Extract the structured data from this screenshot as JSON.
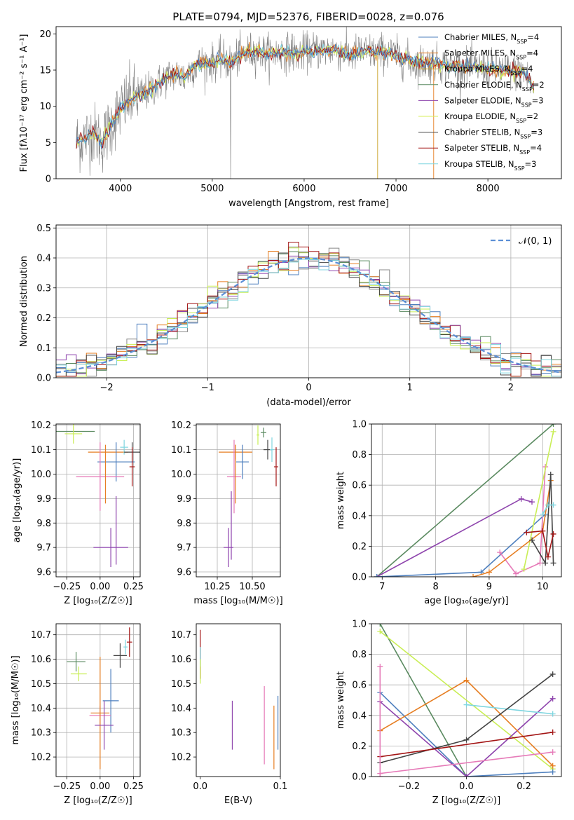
{
  "title": "PLATE=0794, MJD=52376, FIBERID=0028, z=0.076",
  "colors": {
    "cm": "#4d7fbe",
    "sm": "#e67e22",
    "km": "#888888",
    "ce": "#8e44ad",
    "se": "#de9bc7",
    "ke": "#c9ee55",
    "cs": "#2c2c2c",
    "ss": "#a31515",
    "ks": "#7fd6e0",
    "gauss": "#5b8fd6",
    "green": "#5a8a60",
    "pink": "#e67ab8"
  },
  "chart_data": [
    {
      "type": "line",
      "id": "spectrum",
      "xlabel": "wavelength [Angstrom, rest frame]",
      "ylabel": "Flux [f_λ 10^-17 erg cm^-2 s^-1 A^-1]",
      "xlim": [
        3300,
        8800
      ],
      "ylim": [
        0,
        21
      ],
      "xticks": [
        4000,
        5000,
        6000,
        7000,
        8000
      ],
      "yticks": [
        0,
        5,
        10,
        15,
        20
      ],
      "legend_position": "top-right",
      "legend": [
        {
          "label": "Chabrier MILES, N",
          "sub": "SSP",
          "tail": "=4",
          "color": "#4d7fbe"
        },
        {
          "label": "Salpeter MILES, N",
          "sub": "SSP",
          "tail": "=4",
          "color": "#e67e22"
        },
        {
          "label": "Kroupa MILES, N",
          "sub": "SSP",
          "tail": "=4",
          "color": "#c9a227"
        },
        {
          "label": "Chabrier ELODIE, N",
          "sub": "SSP",
          "tail": "=2",
          "color": "#5a8a60"
        },
        {
          "label": "Salpeter ELODIE, N",
          "sub": "SSP",
          "tail": "=3",
          "color": "#8e44ad"
        },
        {
          "label": "Kroupa ELODIE, N",
          "sub": "SSP",
          "tail": "=2",
          "color": "#d7ef5a"
        },
        {
          "label": "Chabrier STELIB, N",
          "sub": "SSP",
          "tail": "=3",
          "color": "#444444"
        },
        {
          "label": "Salpeter STELIB, N",
          "sub": "SSP",
          "tail": "=4",
          "color": "#a31515"
        },
        {
          "label": "Kroupa STELIB, N",
          "sub": "SSP",
          "tail": "=3",
          "color": "#7fd6e0"
        }
      ],
      "continuum": [
        [
          3500,
          5
        ],
        [
          3600,
          5.5
        ],
        [
          3700,
          6.5
        ],
        [
          3800,
          5
        ],
        [
          3900,
          7.5
        ],
        [
          4000,
          9.5
        ],
        [
          4100,
          11
        ],
        [
          4200,
          11.5
        ],
        [
          4300,
          12
        ],
        [
          4400,
          13
        ],
        [
          4500,
          14
        ],
        [
          4600,
          14.5
        ],
        [
          4700,
          14
        ],
        [
          4800,
          15.5
        ],
        [
          4900,
          16
        ],
        [
          5000,
          16
        ],
        [
          5100,
          16.5
        ],
        [
          5200,
          16
        ],
        [
          5300,
          17
        ],
        [
          5400,
          17.5
        ],
        [
          5500,
          17.5
        ],
        [
          5600,
          17.3
        ],
        [
          5700,
          17.3
        ],
        [
          5800,
          17.5
        ],
        [
          5900,
          17.2
        ],
        [
          6000,
          17.5
        ],
        [
          6100,
          17.7
        ],
        [
          6200,
          17.8
        ],
        [
          6300,
          17.8
        ],
        [
          6400,
          17.5
        ],
        [
          6500,
          17
        ],
        [
          6600,
          17.5
        ],
        [
          6700,
          17.5
        ],
        [
          6800,
          17.5
        ],
        [
          6900,
          17.5
        ],
        [
          7000,
          17
        ],
        [
          7100,
          16.5
        ],
        [
          7200,
          16
        ],
        [
          7300,
          16
        ],
        [
          7400,
          16
        ],
        [
          7500,
          15.8
        ],
        [
          7600,
          15.5
        ],
        [
          7700,
          15.5
        ],
        [
          7800,
          15.3
        ],
        [
          7900,
          15.3
        ],
        [
          8000,
          15.2
        ],
        [
          8100,
          15
        ],
        [
          8200,
          15
        ],
        [
          8300,
          14.8
        ],
        [
          8400,
          14.5
        ],
        [
          8500,
          12.5
        ]
      ]
    },
    {
      "type": "line",
      "id": "residuals",
      "xlabel": "(data-model)/error",
      "ylabel": "Normed distribution",
      "xlim": [
        -2.5,
        2.5
      ],
      "ylim": [
        0,
        0.51
      ],
      "xticks": [
        -2,
        -1,
        0,
        1,
        2
      ],
      "yticks": [
        0.0,
        0.1,
        0.2,
        0.3,
        0.4,
        0.5
      ],
      "legend_position": "top-right",
      "legend": [
        {
          "label": "𝒩(0, 1)",
          "color": "#5b8fd6"
        }
      ]
    },
    {
      "type": "scatter",
      "id": "age_vs_Z",
      "xlabel": "Z [log10(Z/Z☉)]",
      "ylabel": "age [log10(age/yr)]",
      "xlim": [
        -0.33,
        0.3
      ],
      "ylim": [
        9.58,
        10.205
      ],
      "xticks": [
        -0.25,
        0.0,
        0.25
      ],
      "yticks": [
        9.6,
        9.7,
        9.8,
        9.9,
        10.0,
        10.1,
        10.2
      ],
      "points": [
        {
          "x": -0.2,
          "y": 10.175,
          "xerr": 0.32,
          "yerr": 0.0,
          "color": "#5a8a60"
        },
        {
          "x": -0.2,
          "y": 10.165,
          "xerr": 0.13,
          "yerr": 0.04,
          "color": "#c9ee55"
        },
        {
          "x": 0.06,
          "y": 10.09,
          "xerr": 0.3,
          "yerr": 0.0,
          "color": "#e67e22"
        },
        {
          "x": 0.18,
          "y": 10.11,
          "xerr": 0.06,
          "yerr": 0.03,
          "color": "#7fd6e0"
        },
        {
          "x": 0.24,
          "y": 10.09,
          "xerr": 0.12,
          "yerr": 0.04,
          "color": "#444444"
        },
        {
          "x": 0.12,
          "y": 10.05,
          "xerr": 0.28,
          "yerr": 0.08,
          "color": "#4d7fbe"
        },
        {
          "x": 0.24,
          "y": 10.03,
          "xerr": 0.04,
          "yerr": 0.08,
          "color": "#a31515"
        },
        {
          "x": 0.0,
          "y": 9.99,
          "xerr": 0.36,
          "yerr": 0.14,
          "color": "#e67ab8"
        },
        {
          "x": 0.04,
          "y": 10.0,
          "xerr": 0.0,
          "yerr": 0.12,
          "color": "#e67e22"
        },
        {
          "x": 0.08,
          "y": 9.7,
          "xerr": 0.26,
          "yerr": 0.08,
          "color": "#8e44ad"
        },
        {
          "x": 0.12,
          "y": 9.77,
          "xerr": 0.0,
          "yerr": 0.14,
          "color": "#8e44ad"
        }
      ]
    },
    {
      "type": "scatter",
      "id": "age_vs_mass",
      "xlabel": "mass [log10(M/M☉)]",
      "ylabel": "",
      "xlim": [
        10.1,
        10.7
      ],
      "ylim": [
        9.58,
        10.205
      ],
      "xticks": [
        10.25,
        10.5
      ],
      "ytick_labels": [
        9.6,
        9.7,
        9.8,
        9.9,
        10.0,
        10.1,
        10.2
      ],
      "points": [
        {
          "x": 10.58,
          "y": 10.17,
          "xerr": 0.04,
          "yerr": 0.02,
          "color": "#5a8a60"
        },
        {
          "x": 10.54,
          "y": 10.16,
          "xerr": 0.02,
          "yerr": 0.04,
          "color": "#c9ee55"
        },
        {
          "x": 10.61,
          "y": 10.1,
          "xerr": 0.06,
          "yerr": 0.04,
          "color": "#444444"
        },
        {
          "x": 10.64,
          "y": 10.1,
          "xerr": 0.03,
          "yerr": 0.05,
          "color": "#7fd6e0"
        },
        {
          "x": 10.67,
          "y": 10.03,
          "xerr": 0.03,
          "yerr": 0.08,
          "color": "#a31515"
        },
        {
          "x": 10.38,
          "y": 10.09,
          "xerr": 0.24,
          "yerr": 0.03,
          "color": "#e67e22"
        },
        {
          "x": 10.43,
          "y": 10.05,
          "xerr": 0.09,
          "yerr": 0.07,
          "color": "#4d7fbe"
        },
        {
          "x": 10.37,
          "y": 9.99,
          "xerr": 0.1,
          "yerr": 0.15,
          "color": "#e67ab8"
        },
        {
          "x": 10.38,
          "y": 10.0,
          "xerr": 0.0,
          "yerr": 0.12,
          "color": "#e67e22"
        },
        {
          "x": 10.33,
          "y": 9.7,
          "xerr": 0.07,
          "yerr": 0.08,
          "color": "#8e44ad"
        },
        {
          "x": 10.35,
          "y": 9.79,
          "xerr": 0.0,
          "yerr": 0.14,
          "color": "#8e44ad"
        }
      ]
    },
    {
      "type": "line",
      "id": "mw_vs_age",
      "xlabel": "age [log10(age/yr)]",
      "ylabel": "mass weight",
      "xlim": [
        6.8,
        10.35
      ],
      "ylim": [
        0,
        1.0
      ],
      "xticks": [
        7,
        8,
        9,
        10
      ],
      "yticks": [
        0.0,
        0.2,
        0.4,
        0.6,
        0.8,
        1.0
      ],
      "series": [
        {
          "color": "#5a8a60",
          "x": [
            6.9,
            10.2
          ],
          "y": [
            0.0,
            1.0
          ]
        },
        {
          "color": "#8e44ad",
          "x": [
            6.9,
            9.6,
            9.8
          ],
          "y": [
            0.0,
            0.51,
            0.49
          ]
        },
        {
          "color": "#4d7fbe",
          "x": [
            6.9,
            8.85,
            10.05
          ],
          "y": [
            0.0,
            0.03,
            0.41
          ]
        },
        {
          "color": "#e67ab8",
          "x": [
            9.2,
            9.5,
            9.95,
            10.05
          ],
          "y": [
            0.16,
            0.02,
            0.09,
            0.72
          ]
        },
        {
          "color": "#c9ee55",
          "x": [
            9.65,
            10.2
          ],
          "y": [
            0.05,
            0.95
          ]
        },
        {
          "color": "#e67e22",
          "x": [
            8.7,
            9.0,
            10.0,
            10.15
          ],
          "y": [
            0.0,
            0.03,
            0.3,
            0.63
          ]
        },
        {
          "color": "#444444",
          "x": [
            9.8,
            10.05,
            10.15,
            10.2
          ],
          "y": [
            0.24,
            0.09,
            0.67,
            0.09
          ]
        },
        {
          "color": "#a31515",
          "x": [
            9.7,
            10.0,
            10.1,
            10.2
          ],
          "y": [
            0.29,
            0.3,
            0.13,
            0.28
          ]
        },
        {
          "color": "#7fd6e0",
          "x": [
            10.0,
            10.1,
            10.2
          ],
          "y": [
            0.41,
            0.47,
            0.47
          ]
        }
      ]
    },
    {
      "type": "scatter",
      "id": "mass_vs_Z",
      "xlabel": "Z [log10(Z/Z☉)]",
      "ylabel": "mass [log10(M/M☉)]",
      "xlim": [
        -0.33,
        0.3
      ],
      "ylim": [
        10.12,
        10.745
      ],
      "xticks": [
        -0.25,
        0.0,
        0.25
      ],
      "yticks": [
        10.2,
        10.3,
        10.4,
        10.5,
        10.6,
        10.7
      ],
      "points": [
        {
          "x": -0.18,
          "y": 10.59,
          "xerr": 0.14,
          "yerr": 0.04,
          "color": "#5a8a60"
        },
        {
          "x": -0.16,
          "y": 10.54,
          "xerr": 0.12,
          "yerr": 0.03,
          "color": "#c9ee55"
        },
        {
          "x": 0.15,
          "y": 10.615,
          "xerr": 0.1,
          "yerr": 0.05,
          "color": "#444444"
        },
        {
          "x": 0.22,
          "y": 10.67,
          "xerr": 0.04,
          "yerr": 0.06,
          "color": "#a31515"
        },
        {
          "x": 0.19,
          "y": 10.65,
          "xerr": 0.03,
          "yerr": 0.03,
          "color": "#7fd6e0"
        },
        {
          "x": 0.08,
          "y": 10.43,
          "xerr": 0.12,
          "yerr": 0.13,
          "color": "#4d7fbe"
        },
        {
          "x": 0.0,
          "y": 10.37,
          "xerr": 0.16,
          "yerr": 0.04,
          "color": "#e67ab8"
        },
        {
          "x": 0.0,
          "y": 10.38,
          "xerr": 0.14,
          "yerr": 0.23,
          "color": "#e67e22"
        },
        {
          "x": 0.03,
          "y": 10.33,
          "xerr": 0.14,
          "yerr": 0.1,
          "color": "#8e44ad"
        }
      ]
    },
    {
      "type": "scatter",
      "id": "mass_vs_ebv",
      "xlabel": "E(B-V)",
      "ylabel": "",
      "xlim": [
        -0.005,
        0.1
      ],
      "ylim": [
        10.12,
        10.745
      ],
      "xticks": [
        0.0,
        0.1
      ],
      "ytick_labels": [
        10.2,
        10.3,
        10.4,
        10.5,
        10.6,
        10.7
      ],
      "points": [
        {
          "x": 0.0,
          "y": 10.62,
          "xerr": 0.0,
          "yerr": 0.1,
          "color": "#a31515"
        },
        {
          "x": 0.0,
          "y": 10.61,
          "xerr": 0.0,
          "yerr": 0.04,
          "color": "#7fd6e0"
        },
        {
          "x": 0.0,
          "y": 10.55,
          "xerr": 0.0,
          "yerr": 0.05,
          "color": "#c9ee55"
        },
        {
          "x": 0.04,
          "y": 10.33,
          "xerr": 0.0,
          "yerr": 0.1,
          "color": "#8e44ad"
        },
        {
          "x": 0.08,
          "y": 10.33,
          "xerr": 0.0,
          "yerr": 0.16,
          "color": "#e67ab8"
        },
        {
          "x": 0.092,
          "y": 10.28,
          "xerr": 0.0,
          "yerr": 0.13,
          "color": "#e67e22"
        },
        {
          "x": 0.097,
          "y": 10.34,
          "xerr": 0.0,
          "yerr": 0.11,
          "color": "#4d7fbe"
        }
      ]
    },
    {
      "type": "line",
      "id": "mw_vs_Z",
      "xlabel": "Z [log10(Z/Z☉)]",
      "ylabel": "mass weight",
      "xlim": [
        -0.33,
        0.33
      ],
      "ylim": [
        0,
        1.0
      ],
      "xticks": [
        -0.2,
        0.0,
        0.2
      ],
      "yticks": [
        0.0,
        0.2,
        0.4,
        0.6,
        0.8,
        1.0
      ],
      "series": [
        {
          "color": "#5a8a60",
          "x": [
            -0.3,
            0.0
          ],
          "y": [
            1.0,
            0.0
          ]
        },
        {
          "color": "#c9ee55",
          "x": [
            -0.3,
            0.3
          ],
          "y": [
            0.95,
            0.05
          ]
        },
        {
          "color": "#4d7fbe",
          "x": [
            -0.3,
            0.0,
            0.3
          ],
          "y": [
            0.55,
            0.0,
            0.03
          ]
        },
        {
          "color": "#8e44ad",
          "x": [
            -0.3,
            0.0,
            0.3
          ],
          "y": [
            0.49,
            0.0,
            0.51
          ]
        },
        {
          "color": "#e67e22",
          "x": [
            -0.3,
            0.0,
            0.3
          ],
          "y": [
            0.3,
            0.63,
            0.07
          ]
        },
        {
          "color": "#7fd6e0",
          "x": [
            0.0,
            0.3
          ],
          "y": [
            0.47,
            0.41
          ]
        },
        {
          "color": "#444444",
          "x": [
            -0.3,
            0.0,
            0.3
          ],
          "y": [
            0.09,
            0.24,
            0.67
          ]
        },
        {
          "color": "#a31515",
          "x": [
            -0.3,
            0.3
          ],
          "y": [
            0.13,
            0.29
          ]
        },
        {
          "color": "#e67ab8",
          "x": [
            -0.3,
            0.3
          ],
          "y": [
            0.02,
            0.16
          ]
        },
        {
          "color": "#e67ab8",
          "x": [
            -0.3,
            -0.3
          ],
          "y": [
            0.0,
            0.72
          ]
        }
      ]
    }
  ]
}
